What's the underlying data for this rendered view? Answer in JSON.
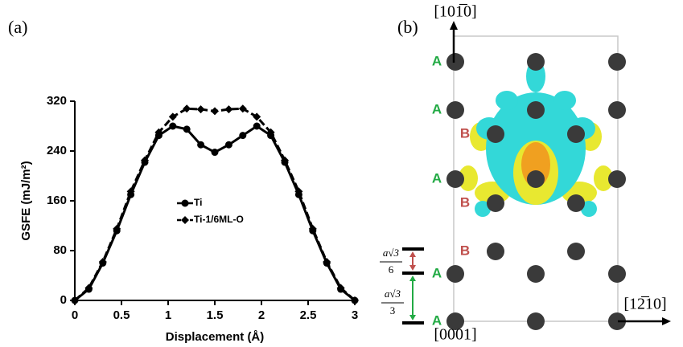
{
  "chart_data": {
    "type": "line",
    "panel_label": "(a)",
    "x_label": "Displacement (Å)",
    "y_label": "GSFE (mJ/m²)",
    "x": [
      0,
      0.15,
      0.3,
      0.45,
      0.6,
      0.75,
      0.9,
      1.05,
      1.2,
      1.35,
      1.5,
      1.65,
      1.8,
      1.95,
      2.1,
      2.25,
      2.4,
      2.55,
      2.7,
      2.85,
      3.0
    ],
    "series": [
      {
        "name": "Ti",
        "color": "#000000",
        "marker": "circle",
        "dashed": false,
        "values": [
          0,
          18,
          60,
          112,
          170,
          222,
          265,
          280,
          275,
          250,
          238,
          250,
          265,
          280,
          265,
          222,
          170,
          112,
          60,
          18,
          0
        ]
      },
      {
        "name": "Ti-1/6ML-O",
        "color": "#000000",
        "marker": "diamond",
        "dashed": true,
        "values": [
          0,
          20,
          62,
          115,
          175,
          225,
          270,
          295,
          308,
          307,
          304,
          307,
          308,
          295,
          270,
          225,
          175,
          115,
          62,
          20,
          0
        ]
      }
    ],
    "xlim": [
      0,
      3
    ],
    "xticks": [
      0,
      0.5,
      1,
      1.5,
      2,
      2.5,
      3
    ],
    "ylim": [
      0,
      320
    ],
    "yticks": [
      0,
      80,
      160,
      240,
      320
    ],
    "grid": false
  },
  "panel_b": {
    "panel_label": "(b)",
    "direction_up": "[101̅0]",
    "direction_right": "[12̅10]",
    "direction_down": "[0001]",
    "stacking": [
      "A",
      "A",
      "B",
      "A",
      "B",
      "B",
      "A",
      "A"
    ],
    "spacing_ab": {
      "numerator": "a√3",
      "denominator": "6"
    },
    "spacing_aa": {
      "numerator": "a√3",
      "denominator": "3"
    }
  }
}
